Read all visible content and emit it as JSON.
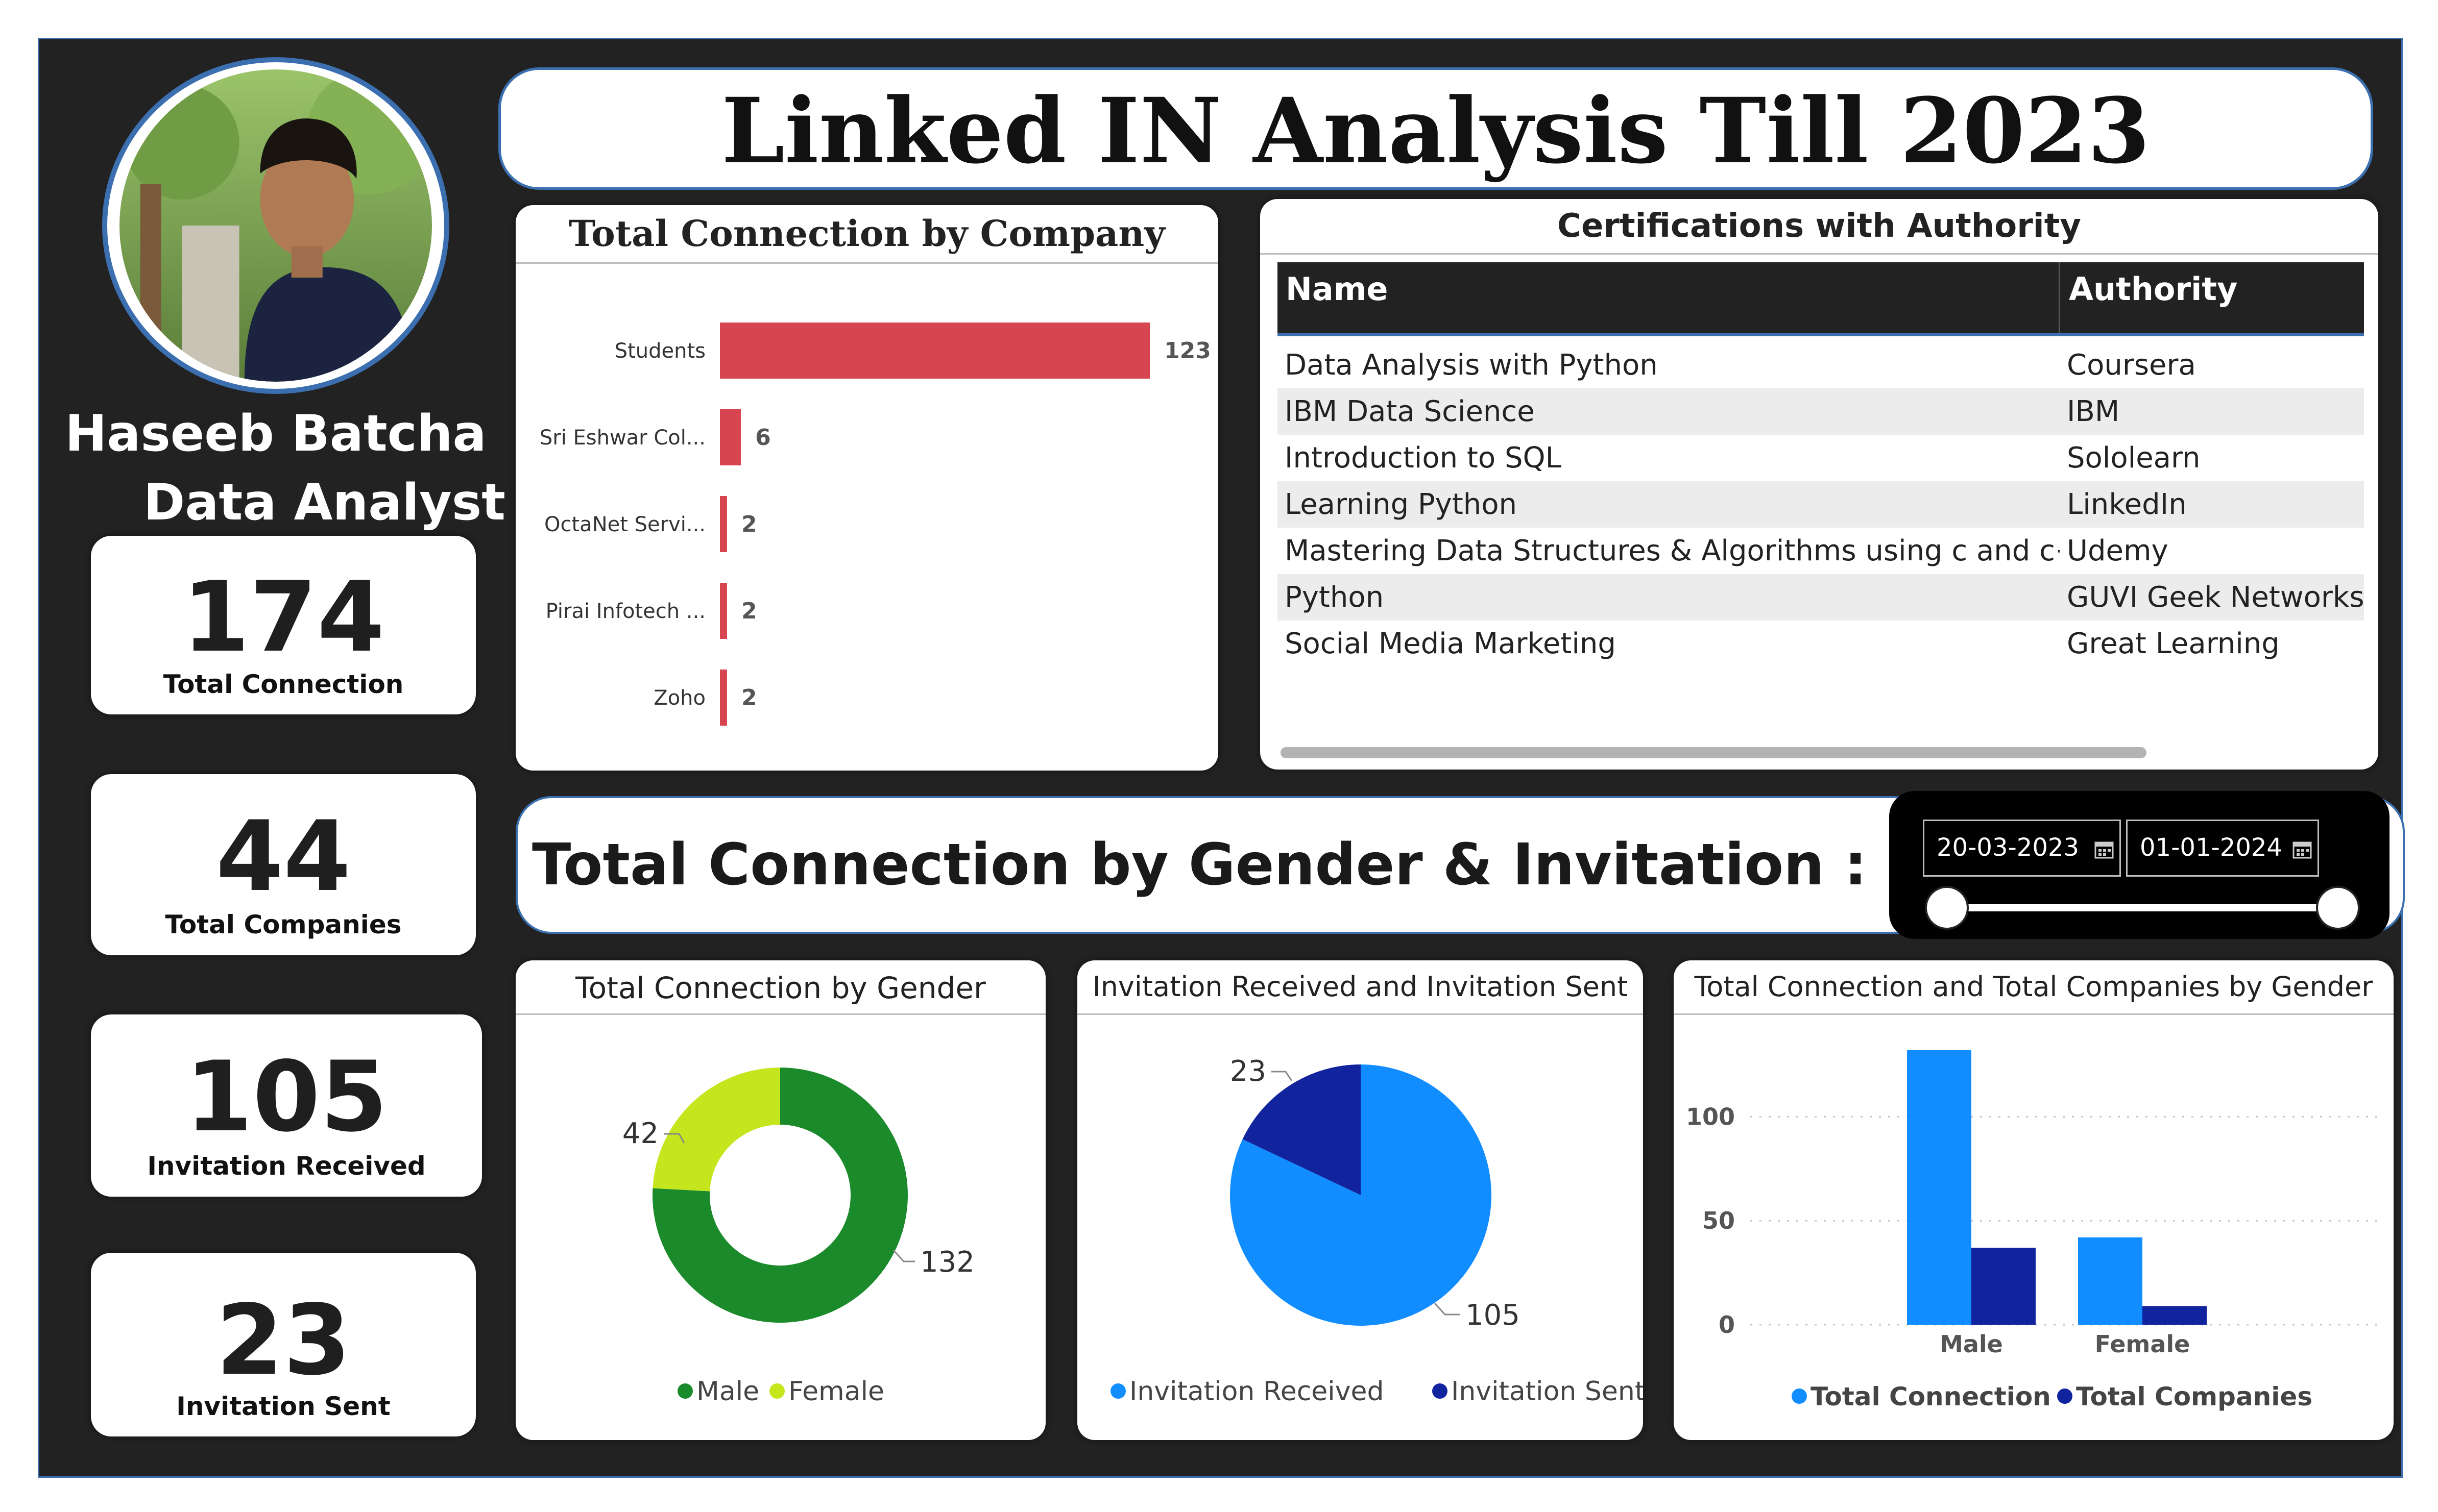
{
  "header": {
    "title": "Linked IN Analysis Till 2023"
  },
  "profile": {
    "name": "Haseeb Batcha",
    "role": "Data Analyst"
  },
  "kpis": [
    {
      "value": "174",
      "label": "Total Connection"
    },
    {
      "value": "44",
      "label": "Total Companies"
    },
    {
      "value": "105",
      "label": "Invitation Received"
    },
    {
      "value": "23",
      "label": "Invitation Sent"
    }
  ],
  "company_chart": {
    "title": "Total Connection by Company"
  },
  "certifications": {
    "title": "Certifications with Authority",
    "columns": [
      "Name",
      "Authority"
    ],
    "rows": [
      [
        "Data Analysis with Python",
        "Coursera"
      ],
      [
        "IBM Data Science",
        "IBM"
      ],
      [
        "Introduction to SQL",
        "Sololearn"
      ],
      [
        "Learning Python",
        "LinkedIn"
      ],
      [
        "Mastering Data Structures & Algorithms using c and c++",
        "Udemy"
      ],
      [
        "Python",
        "GUVI Geek Networks,"
      ],
      [
        "Social Media Marketing",
        "Great Learning"
      ]
    ]
  },
  "section": {
    "title": "Total Connection by Gender & Invitation :"
  },
  "date_filter": {
    "start": "20-03-2023",
    "end": "01-01-2024"
  },
  "gender_chart": {
    "title": "Total Connection by Gender"
  },
  "invitation_chart": {
    "title": "Invitation Received and Invitation Sent"
  },
  "gender_bar_chart": {
    "title": "Total Connection and Total Companies by Gender"
  },
  "colors": {
    "bar_red": "#d64550",
    "male_green": "#1a8a2a",
    "female_lime": "#c5e61c",
    "blue_light": "#118dff",
    "blue_dark": "#12239e"
  },
  "chart_data": [
    {
      "type": "bar",
      "orientation": "horizontal",
      "title": "Total Connection by Company",
      "categories": [
        "Students",
        "Sri Eshwar Col...",
        "OctaNet Servi...",
        "Pirai Infotech ...",
        "Zoho"
      ],
      "values": [
        123,
        6,
        2,
        2,
        2
      ],
      "xlim": [
        0,
        123
      ]
    },
    {
      "type": "pie",
      "variant": "donut",
      "title": "Total Connection by Gender",
      "categories": [
        "Male",
        "Female"
      ],
      "values": [
        132,
        42
      ],
      "legend": "bottom"
    },
    {
      "type": "pie",
      "title": "Invitation Received and Invitation Sent",
      "categories": [
        "Invitation Received",
        "Invitation Sent"
      ],
      "values": [
        105,
        23
      ],
      "legend": "bottom"
    },
    {
      "type": "bar",
      "title": "Total Connection and Total Companies by Gender",
      "categories": [
        "Male",
        "Female"
      ],
      "series": [
        {
          "name": "Total Connection",
          "values": [
            132,
            42
          ]
        },
        {
          "name": "Total Companies",
          "values": [
            37,
            9
          ]
        }
      ],
      "ylim": [
        0,
        132
      ],
      "yticks": [
        0,
        50,
        100
      ],
      "grid": true,
      "legend": "bottom"
    }
  ]
}
